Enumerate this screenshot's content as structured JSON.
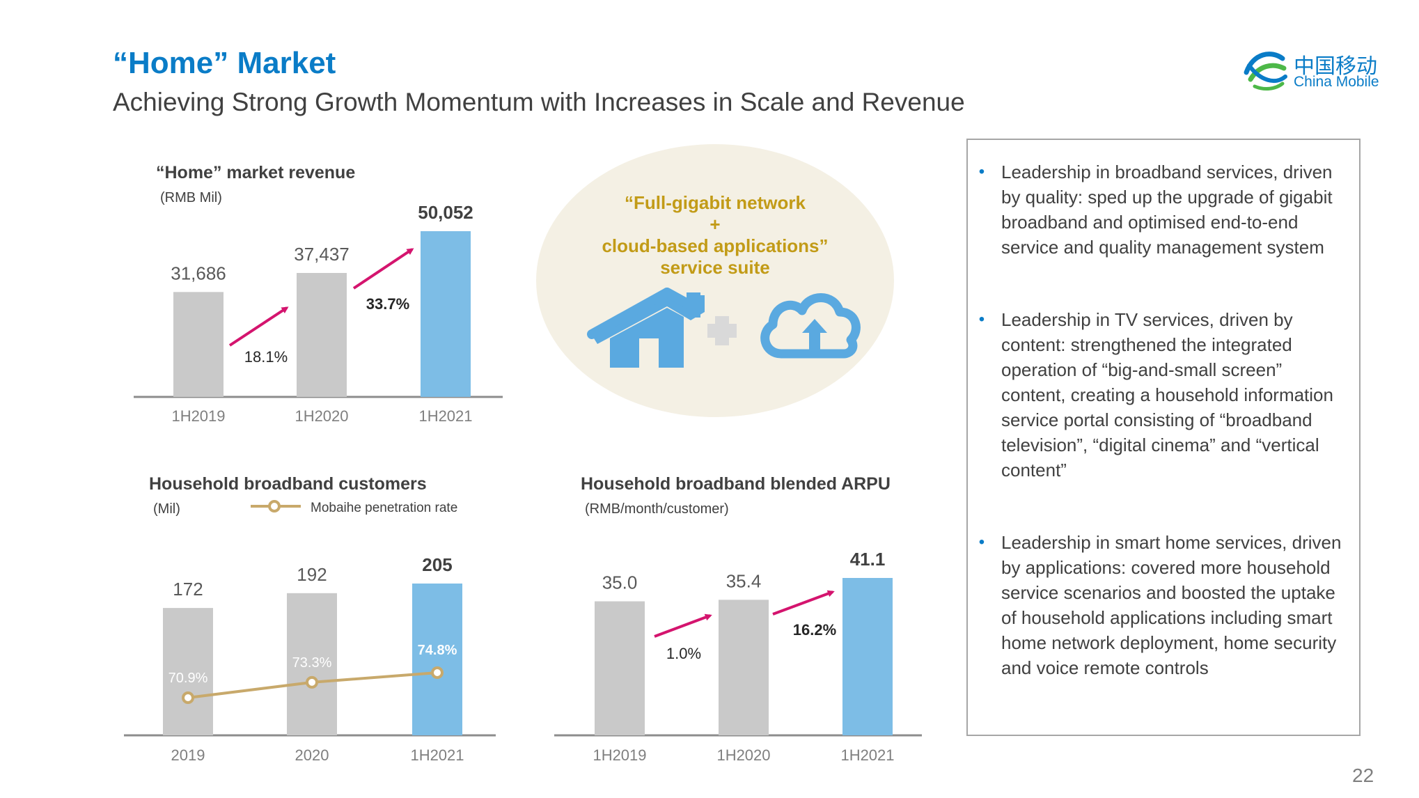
{
  "title": "“Home” Market",
  "subtitle": "Achieving Strong Growth Momentum with Increases in Scale and Revenue",
  "logo": {
    "cn": "中国移动",
    "en": "China Mobile"
  },
  "page_number": "22",
  "center_graphic": {
    "line1": "“Full-gigabit network",
    "line2": "+",
    "line3": "cloud-based applications”",
    "line4": "service suite",
    "icons": [
      "house-icon",
      "plus-icon",
      "cloud-upload-icon"
    ]
  },
  "bullets": [
    "Leadership in broadband services, driven by quality: sped up the upgrade of gigabit broadband and optimised end-to-end service and quality management system",
    "Leadership in TV services, driven by content: strengthened the integrated operation of “big-and-small screen” content, creating a household information service portal consisting of “broadband television”, “digital cinema” and “vertical content”",
    "Leadership in smart home services, driven by applications: covered more household service scenarios and boosted the uptake of household applications including smart home network deployment, home security and voice remote controls"
  ],
  "colors": {
    "title_blue": "#0a7cc7",
    "bar_gray": "#c9c9c9",
    "bar_blue": "#7dbde6",
    "arrow_magenta": "#d4146e",
    "line_gold": "#c8a96b",
    "graphic_gold": "#c29b17",
    "ellipse_fill": "#f4f0e4"
  },
  "chart_data": [
    {
      "type": "bar",
      "title": "“Home” market revenue",
      "unit": "(RMB Mil)",
      "categories": [
        "1H2019",
        "1H2020",
        "1H2021"
      ],
      "values": [
        31686,
        37437,
        50052
      ],
      "value_labels": [
        "31,686",
        "37,437",
        "50,052"
      ],
      "growth_labels": [
        "18.1%",
        "33.7%"
      ],
      "highlight_last": true
    },
    {
      "type": "bar",
      "title": "Household broadband customers",
      "unit": "(Mil)",
      "categories": [
        "2019",
        "2020",
        "1H2021"
      ],
      "values": [
        172,
        192,
        205
      ],
      "value_labels": [
        "172",
        "192",
        "205"
      ],
      "highlight_last": true,
      "line_series": {
        "name": "Mobaihe penetration rate",
        "values": [
          70.9,
          73.3,
          74.8
        ],
        "labels": [
          "70.9%",
          "73.3%",
          "74.8%"
        ]
      }
    },
    {
      "type": "bar",
      "title": "Household broadband blended ARPU",
      "unit": "(RMB/month/customer)",
      "categories": [
        "1H2019",
        "1H2020",
        "1H2021"
      ],
      "values": [
        35.0,
        35.4,
        41.1
      ],
      "value_labels": [
        "35.0",
        "35.4",
        "41.1"
      ],
      "growth_labels": [
        "1.0%",
        "16.2%"
      ],
      "highlight_last": true
    }
  ]
}
